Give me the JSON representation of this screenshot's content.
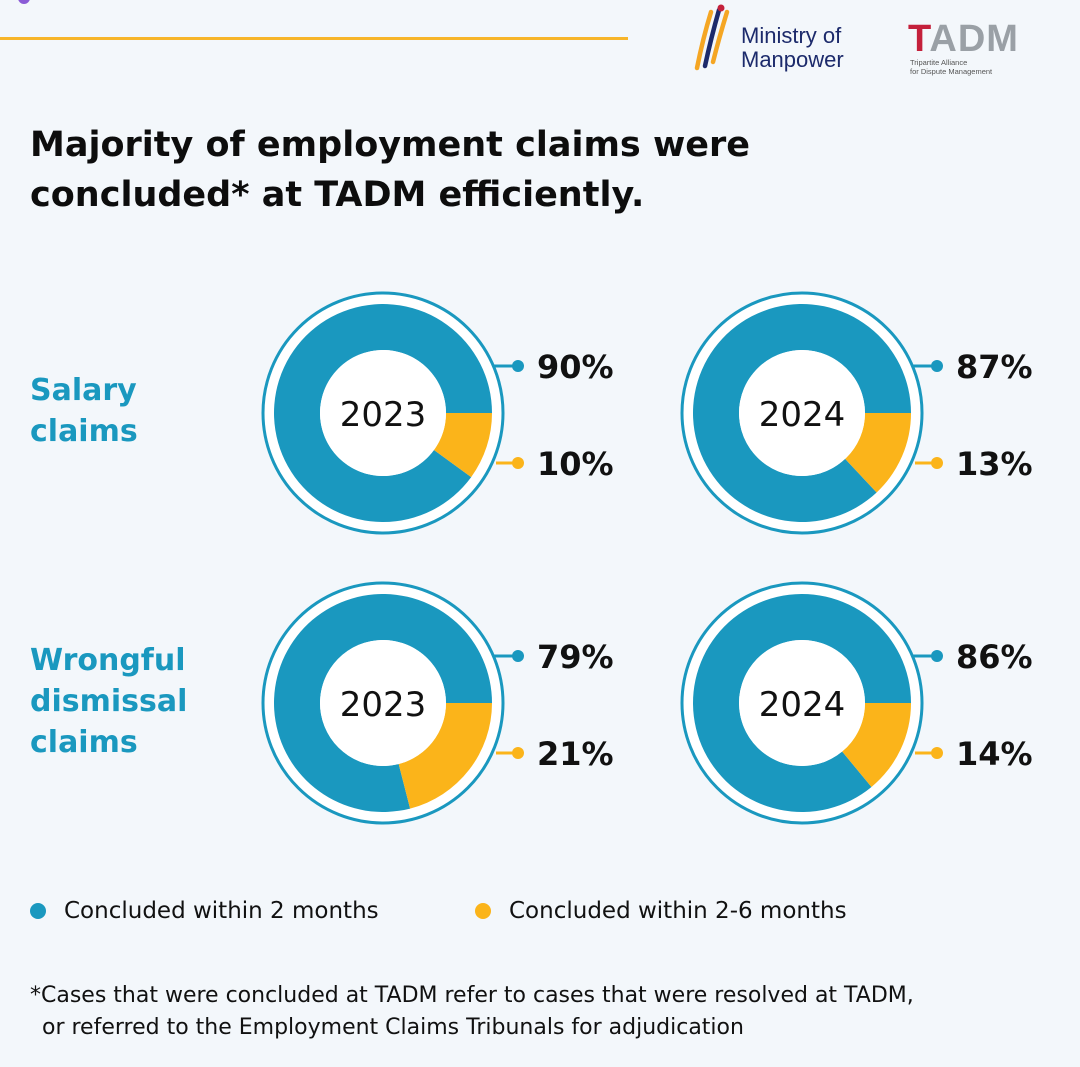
{
  "header": {
    "mom_logo_text": [
      "Ministry of",
      "Manpower"
    ],
    "tadm_logo_letters": [
      "T",
      "ADM"
    ],
    "tadm_logo_subtext": [
      "Tripartite Alliance",
      "for Dispute Management"
    ]
  },
  "title": [
    "Majority of employment claims were",
    "concluded* at TADM efficiently."
  ],
  "colors": {
    "within_2_months": "#1a98bf",
    "within_2_6_months": "#fbb41a",
    "accent": "#f7b52a"
  },
  "chart_data": {
    "type": "pie",
    "variant": "donut",
    "rows": [
      {
        "label": [
          "Salary",
          "claims"
        ],
        "charts": [
          {
            "year": "2023",
            "values": [
              90,
              10
            ]
          },
          {
            "year": "2024",
            "values": [
              87,
              13
            ]
          }
        ]
      },
      {
        "label": [
          "Wrongful",
          "dismissal",
          "claims"
        ],
        "charts": [
          {
            "year": "2023",
            "values": [
              79,
              21
            ]
          },
          {
            "year": "2024",
            "values": [
              86,
              14
            ]
          }
        ]
      }
    ],
    "series": [
      {
        "name": "Concluded within 2 months"
      },
      {
        "name": "Concluded within 2-6 months"
      }
    ],
    "unit": "%",
    "legend": "bottom"
  },
  "footnote": [
    "*Cases that were concluded at TADM refer to cases that were resolved at TADM,",
    "or referred to the Employment Claims Tribunals for adjudication"
  ]
}
